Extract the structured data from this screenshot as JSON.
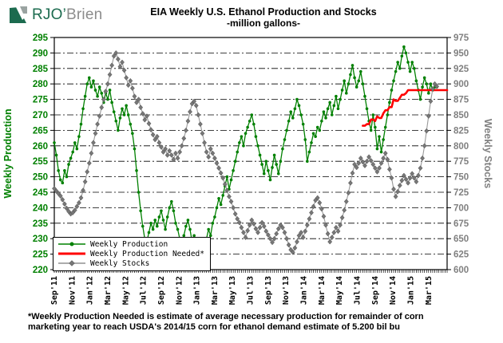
{
  "logo": {
    "primary": "RJO’",
    "secondary": "Brien"
  },
  "header": {
    "title": "EIA Weekly U.S. Ethanol Production and Stocks",
    "subtitle": "-million gallons-"
  },
  "footnote": {
    "line1": "*Weekly Production Needed is estimate of average necessary production for remainder of corn",
    "line2": "marketing year to reach USDA's 2014/15 corn for ethanol demand estimate of 5.200 bil bu"
  },
  "chart_data": {
    "type": "line",
    "title": "EIA Weekly U.S. Ethanol Production and Stocks",
    "subtitle": "-million gallons-",
    "grid": "horizontal-dash-dot",
    "left_axis": {
      "label": "Weekly Production",
      "min": 220,
      "max": 295,
      "step": 5,
      "color": "#008000"
    },
    "right_axis": {
      "label": "Weekly Stocks",
      "min": 600,
      "max": 975,
      "step": 25,
      "color": "#808080"
    },
    "x_axis": {
      "weeks_total": 192,
      "label_week_spacing": 8.6667,
      "tick_labels": [
        "Sep'11",
        "Nov'11",
        "Jan'12",
        "Mar'12",
        "May'12",
        "Jul'12",
        "Sep'12",
        "Nov'12",
        "Jan'13",
        "Mar'13",
        "May'13",
        "Jul'13",
        "Sep'13",
        "Nov'13",
        "Jan'14",
        "Mar'14",
        "May'14",
        "Jul'14",
        "Sep'14",
        "Nov'14",
        "Jan'15",
        "Mar'15"
      ]
    },
    "legend": [
      {
        "name": "Weekly Production",
        "color": "#008000",
        "marker": "circle"
      },
      {
        "name": "Weekly Production Needed*",
        "color": "#ff0000",
        "marker": "none"
      },
      {
        "name": "Weekly Stocks",
        "color": "#909090",
        "marker": "diamond"
      }
    ],
    "series": [
      {
        "name": "Weekly Production",
        "axis": "left",
        "color": "#008000",
        "marker": "circle",
        "line_width": 1.3,
        "start_week": 0,
        "values": [
          261,
          257,
          252,
          249,
          248,
          252,
          250,
          254,
          256,
          258,
          261,
          259,
          263,
          267,
          272,
          276,
          280,
          282,
          279,
          281,
          278,
          276,
          279,
          277,
          274,
          277,
          275,
          278,
          274,
          271,
          268,
          265,
          269,
          272,
          270,
          273,
          270,
          267,
          264,
          259,
          252,
          245,
          239,
          234,
          230,
          229,
          232,
          235,
          233,
          236,
          234,
          237,
          239,
          236,
          233,
          237,
          240,
          242,
          239,
          235,
          233,
          230,
          228,
          231,
          234,
          236,
          233,
          229,
          231,
          228,
          224,
          226,
          223,
          227,
          230,
          233,
          231,
          235,
          237,
          240,
          243,
          241,
          244,
          247,
          250,
          246,
          249,
          252,
          255,
          258,
          261,
          263,
          260,
          264,
          266,
          268,
          270,
          267,
          263,
          260,
          257,
          254,
          251,
          255,
          252,
          249,
          253,
          257,
          254,
          251,
          255,
          259,
          262,
          265,
          268,
          271,
          269,
          272,
          275,
          273,
          270,
          267,
          262,
          255,
          258,
          261,
          264,
          263,
          266,
          265,
          268,
          271,
          269,
          272,
          274,
          270,
          273,
          276,
          272,
          275,
          278,
          281,
          277,
          280,
          283,
          286,
          282,
          279,
          281,
          284,
          280,
          276,
          272,
          268,
          265,
          270,
          266,
          259,
          263,
          258,
          262,
          266,
          270,
          274,
          278,
          281,
          284,
          287,
          285,
          289,
          292,
          290,
          287,
          284,
          287,
          285,
          281,
          278,
          275,
          279,
          282,
          280,
          277,
          280,
          278,
          279,
          279
        ]
      },
      {
        "name": "Weekly Production Needed*",
        "axis": "left",
        "color": "#ff0000",
        "marker": "none",
        "line_width": 2.6,
        "start_week": 150,
        "values": [
          266.5,
          266.5,
          267,
          267,
          268.5,
          268.5,
          268,
          269.5,
          269,
          269,
          270.5,
          271.5,
          271.5,
          272.5,
          272.5,
          275,
          274.5,
          274.5,
          275.5,
          276.5,
          276.5,
          277,
          278,
          278,
          278,
          278,
          278,
          278,
          278,
          278,
          278,
          278,
          278,
          278,
          278,
          278,
          278,
          278,
          278,
          278,
          278,
          278
        ]
      },
      {
        "name": "Weekly Stocks",
        "axis": "right",
        "color": "#999999",
        "marker": "diamond",
        "line_width": 1.1,
        "start_week": 0,
        "values": [
          731,
          727,
          723,
          719,
          713,
          706,
          699,
          694,
          690,
          692,
          696,
          702,
          708,
          716,
          728,
          742,
          758,
          772,
          788,
          805,
          820,
          835,
          848,
          862,
          875,
          888,
          900,
          915,
          930,
          945,
          950,
          940,
          928,
          935,
          922,
          910,
          898,
          905,
          893,
          880,
          870,
          875,
          862,
          852,
          842,
          848,
          836,
          826,
          818,
          810,
          815,
          805,
          798,
          790,
          795,
          785,
          792,
          785,
          778,
          788,
          780,
          790,
          800,
          812,
          825,
          840,
          855,
          868,
          872,
          865,
          850,
          835,
          820,
          805,
          790,
          782,
          795,
          788,
          780,
          772,
          764,
          756,
          748,
          738,
          728,
          718,
          710,
          700,
          690,
          682,
          676,
          668,
          660,
          652,
          663,
          672,
          680,
          674,
          666,
          660,
          668,
          676,
          670,
          662,
          656,
          650,
          644,
          650,
          658,
          666,
          672,
          668,
          660,
          650,
          640,
          632,
          628,
          635,
          645,
          655,
          660,
          652,
          662,
          672,
          682,
          692,
          702,
          712,
          716,
          708,
          698,
          686,
          672,
          658,
          645,
          652,
          660,
          668,
          662,
          672,
          684,
          696,
          710,
          724,
          740,
          756,
          770,
          765,
          772,
          780,
          774,
          768,
          775,
          782,
          776,
          770,
          764,
          758,
          764,
          772,
          780,
          788,
          778,
          762,
          748,
          730,
          718,
          726,
          736,
          744,
          752,
          746,
          740,
          748,
          755,
          748,
          742,
          752,
          764,
          780,
          800,
          824,
          848,
          872,
          892,
          900,
          896
        ]
      }
    ]
  }
}
